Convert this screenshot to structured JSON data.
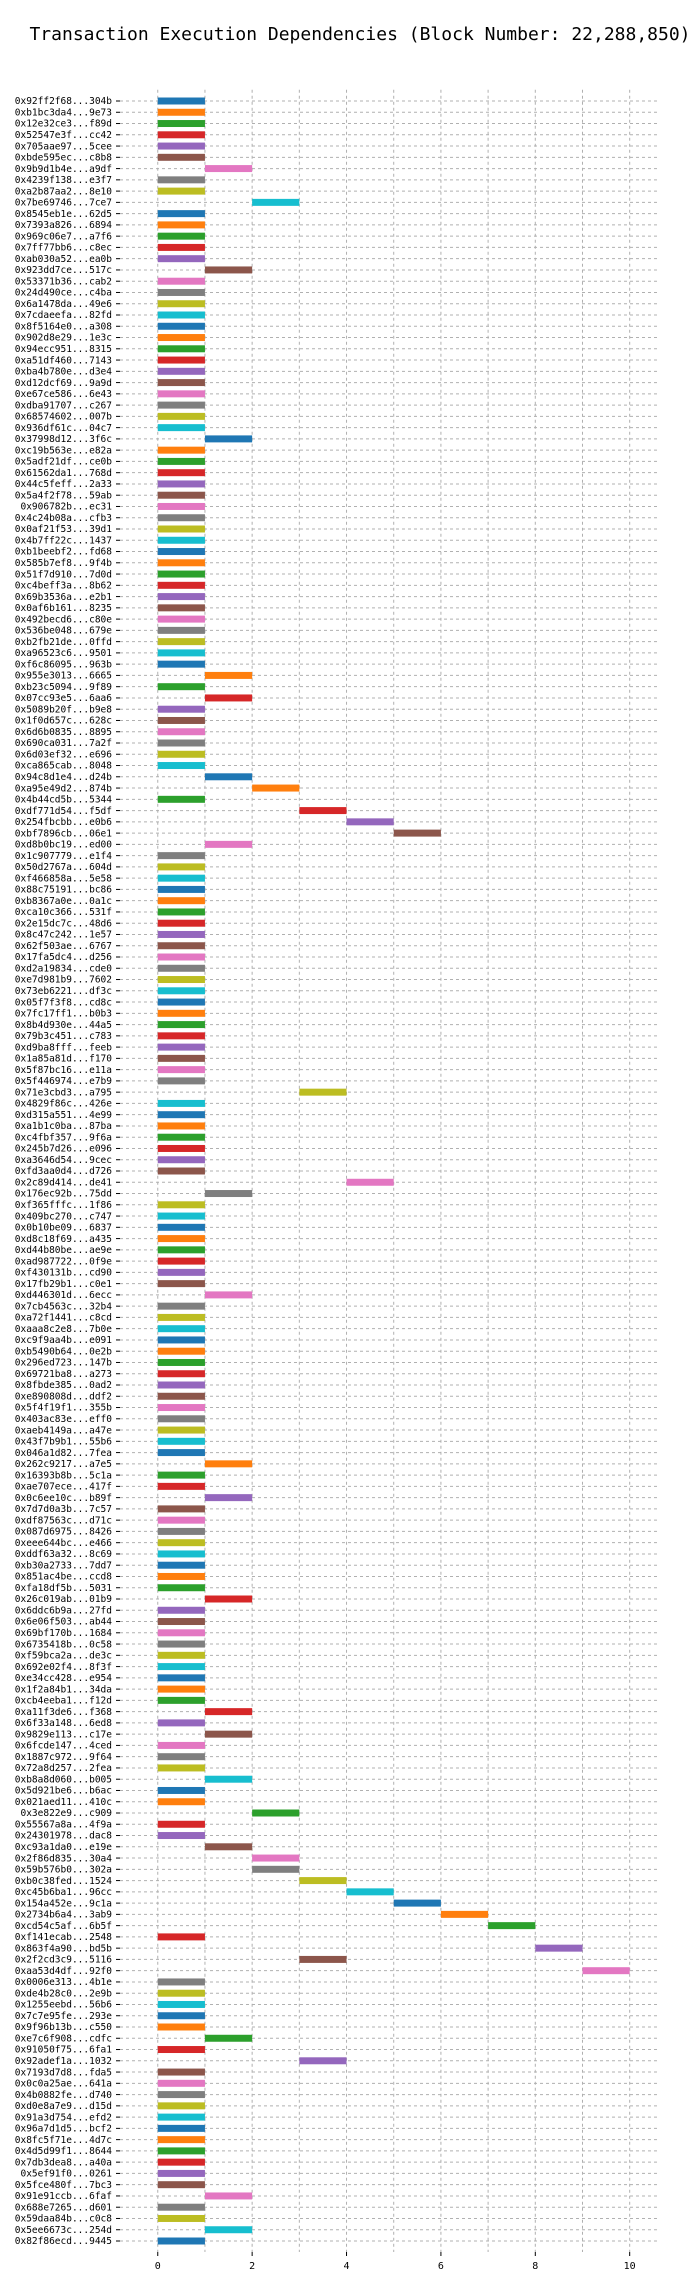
{
  "chart_data": {
    "type": "bar",
    "orientation": "horizontal",
    "title": "Transaction Execution Dependencies (Block Number: 22,288,850)",
    "xlabel": "",
    "ylabel": "",
    "xlim": [
      -0.8,
      10.6
    ],
    "xticks": [
      0,
      2,
      4,
      6,
      8,
      10
    ],
    "grid": true,
    "legend": "none",
    "palette": [
      "#1f77b4",
      "#ff7f0e",
      "#2ca02c",
      "#d62728",
      "#9467bd",
      "#8c564b",
      "#e377c2",
      "#7f7f7f",
      "#bcbd22",
      "#17becf"
    ],
    "transactions": [
      {
        "label": "0x92ff2f68...304b",
        "start": 0,
        "end": 1
      },
      {
        "label": "0xb1bc3da4...9e73",
        "start": 0,
        "end": 1
      },
      {
        "label": "0x12e32ce3...f89d",
        "start": 0,
        "end": 1
      },
      {
        "label": "0x52547e3f...cc42",
        "start": 0,
        "end": 1
      },
      {
        "label": "0x705aae97...5cee",
        "start": 0,
        "end": 1
      },
      {
        "label": "0xbde595ec...c8b8",
        "start": 0,
        "end": 1
      },
      {
        "label": "0x9b9d1b4e...a9df",
        "start": 1,
        "end": 2
      },
      {
        "label": "0x4239f138...e3f7",
        "start": 0,
        "end": 1
      },
      {
        "label": "0xa2b87aa2...8e10",
        "start": 0,
        "end": 1
      },
      {
        "label": "0x7be69746...7ce7",
        "start": 2,
        "end": 3
      },
      {
        "label": "0x8545eb1e...62d5",
        "start": 0,
        "end": 1
      },
      {
        "label": "0x7393a826...6894",
        "start": 0,
        "end": 1
      },
      {
        "label": "0x969c06e7...a7f6",
        "start": 0,
        "end": 1
      },
      {
        "label": "0x7ff77bb6...c8ec",
        "start": 0,
        "end": 1
      },
      {
        "label": "0xab030a52...ea0b",
        "start": 0,
        "end": 1
      },
      {
        "label": "0x923dd7ce...517c",
        "start": 1,
        "end": 2
      },
      {
        "label": "0x53371b36...cab2",
        "start": 0,
        "end": 1
      },
      {
        "label": "0x24d490ce...c4ba",
        "start": 0,
        "end": 1
      },
      {
        "label": "0x6a1478da...49e6",
        "start": 0,
        "end": 1
      },
      {
        "label": "0x7cdaeefa...82fd",
        "start": 0,
        "end": 1
      },
      {
        "label": "0x8f5164e0...a308",
        "start": 0,
        "end": 1
      },
      {
        "label": "0x902d8e29...1e3c",
        "start": 0,
        "end": 1
      },
      {
        "label": "0x94ecc951...8315",
        "start": 0,
        "end": 1
      },
      {
        "label": "0xa51df460...7143",
        "start": 0,
        "end": 1
      },
      {
        "label": "0xba4b780e...d3e4",
        "start": 0,
        "end": 1
      },
      {
        "label": "0xd12dcf69...9a9d",
        "start": 0,
        "end": 1
      },
      {
        "label": "0xe67ce586...6e43",
        "start": 0,
        "end": 1
      },
      {
        "label": "0xdba91707...c267",
        "start": 0,
        "end": 1
      },
      {
        "label": "0x68574602...007b",
        "start": 0,
        "end": 1
      },
      {
        "label": "0x936df61c...04c7",
        "start": 0,
        "end": 1
      },
      {
        "label": "0x37998d12...3f6c",
        "start": 1,
        "end": 2
      },
      {
        "label": "0xc19b563e...e82a",
        "start": 0,
        "end": 1
      },
      {
        "label": "0x5adf21df...ce0b",
        "start": 0,
        "end": 1
      },
      {
        "label": "0x61562da1...768d",
        "start": 0,
        "end": 1
      },
      {
        "label": "0x44c5feff...2a33",
        "start": 0,
        "end": 1
      },
      {
        "label": "0x5a4f2f78...59ab",
        "start": 0,
        "end": 1
      },
      {
        "label": "0x906782b...ec31",
        "start": 0,
        "end": 1
      },
      {
        "label": "0x4c24b08a...cfb3",
        "start": 0,
        "end": 1
      },
      {
        "label": "0x0af21f53...39d1",
        "start": 0,
        "end": 1
      },
      {
        "label": "0x4b7ff22c...1437",
        "start": 0,
        "end": 1
      },
      {
        "label": "0xb1beebf2...fd68",
        "start": 0,
        "end": 1
      },
      {
        "label": "0x585b7ef8...9f4b",
        "start": 0,
        "end": 1
      },
      {
        "label": "0x51f7d910...7d0d",
        "start": 0,
        "end": 1
      },
      {
        "label": "0xc4beff3a...8b62",
        "start": 0,
        "end": 1
      },
      {
        "label": "0x69b3536a...e2b1",
        "start": 0,
        "end": 1
      },
      {
        "label": "0x0af6b161...8235",
        "start": 0,
        "end": 1
      },
      {
        "label": "0x492becd6...c80e",
        "start": 0,
        "end": 1
      },
      {
        "label": "0x536be048...679e",
        "start": 0,
        "end": 1
      },
      {
        "label": "0xb2fb21de...0ffd",
        "start": 0,
        "end": 1
      },
      {
        "label": "0xa96523c6...9501",
        "start": 0,
        "end": 1
      },
      {
        "label": "0xf6c86095...963b",
        "start": 0,
        "end": 1
      },
      {
        "label": "0x955e3013...6665",
        "start": 1,
        "end": 2
      },
      {
        "label": "0xb23c5094...9f89",
        "start": 0,
        "end": 1
      },
      {
        "label": "0x07cc93e5...6aa6",
        "start": 1,
        "end": 2
      },
      {
        "label": "0x5089b20f...b9e8",
        "start": 0,
        "end": 1
      },
      {
        "label": "0x1f0d657c...628c",
        "start": 0,
        "end": 1
      },
      {
        "label": "0x6d6b0835...8895",
        "start": 0,
        "end": 1
      },
      {
        "label": "0x690ca031...7a2f",
        "start": 0,
        "end": 1
      },
      {
        "label": "0x6d03ef32...e696",
        "start": 0,
        "end": 1
      },
      {
        "label": "0xca865cab...8048",
        "start": 0,
        "end": 1
      },
      {
        "label": "0x94c8d1e4...d24b",
        "start": 1,
        "end": 2
      },
      {
        "label": "0xa95e49d2...874b",
        "start": 2,
        "end": 3
      },
      {
        "label": "0x4b44cd5b...5344",
        "start": 0,
        "end": 1
      },
      {
        "label": "0xdf771d54...f5df",
        "start": 3,
        "end": 4
      },
      {
        "label": "0x254fbcbb...e0b6",
        "start": 4,
        "end": 5
      },
      {
        "label": "0xbf7896cb...06e1",
        "start": 5,
        "end": 6
      },
      {
        "label": "0xd8b0bc19...ed00",
        "start": 1,
        "end": 2
      },
      {
        "label": "0x1c907779...e1f4",
        "start": 0,
        "end": 1
      },
      {
        "label": "0x50d2767a...604d",
        "start": 0,
        "end": 1
      },
      {
        "label": "0xf466858a...5e58",
        "start": 0,
        "end": 1
      },
      {
        "label": "0x88c75191...bc86",
        "start": 0,
        "end": 1
      },
      {
        "label": "0xb8367a0e...0a1c",
        "start": 0,
        "end": 1
      },
      {
        "label": "0xca10c366...531f",
        "start": 0,
        "end": 1
      },
      {
        "label": "0x2e15dc7c...48d6",
        "start": 0,
        "end": 1
      },
      {
        "label": "0x8c47c242...1e57",
        "start": 0,
        "end": 1
      },
      {
        "label": "0x62f503ae...6767",
        "start": 0,
        "end": 1
      },
      {
        "label": "0x17fa5dc4...d256",
        "start": 0,
        "end": 1
      },
      {
        "label": "0xd2a19834...cde0",
        "start": 0,
        "end": 1
      },
      {
        "label": "0xe7d981b9...7602",
        "start": 0,
        "end": 1
      },
      {
        "label": "0x73eb6221...df3c",
        "start": 0,
        "end": 1
      },
      {
        "label": "0x05f7f3f8...cd8c",
        "start": 0,
        "end": 1
      },
      {
        "label": "0x7fc17ff1...b0b3",
        "start": 0,
        "end": 1
      },
      {
        "label": "0x8b4d930e...44a5",
        "start": 0,
        "end": 1
      },
      {
        "label": "0x79b3c451...c783",
        "start": 0,
        "end": 1
      },
      {
        "label": "0xd9ba8fff...feeb",
        "start": 0,
        "end": 1
      },
      {
        "label": "0x1a85a81d...f170",
        "start": 0,
        "end": 1
      },
      {
        "label": "0x5f87bc16...e11a",
        "start": 0,
        "end": 1
      },
      {
        "label": "0x5f446974...e7b9",
        "start": 0,
        "end": 1
      },
      {
        "label": "0x71e3cbd3...a795",
        "start": 3,
        "end": 4
      },
      {
        "label": "0x4829f86c...426e",
        "start": 0,
        "end": 1
      },
      {
        "label": "0xd315a551...4e99",
        "start": 0,
        "end": 1
      },
      {
        "label": "0xa1b1c0ba...87ba",
        "start": 0,
        "end": 1
      },
      {
        "label": "0xc4fbf357...9f6a",
        "start": 0,
        "end": 1
      },
      {
        "label": "0x245b7d26...e096",
        "start": 0,
        "end": 1
      },
      {
        "label": "0xa3646d54...9cec",
        "start": 0,
        "end": 1
      },
      {
        "label": "0xfd3aa0d4...d726",
        "start": 0,
        "end": 1
      },
      {
        "label": "0x2c89d414...de41",
        "start": 4,
        "end": 5
      },
      {
        "label": "0x176ec92b...75dd",
        "start": 1,
        "end": 2
      },
      {
        "label": "0xf365fffc...1f86",
        "start": 0,
        "end": 1
      },
      {
        "label": "0x409bc270...c747",
        "start": 0,
        "end": 1
      },
      {
        "label": "0x0b10be09...6837",
        "start": 0,
        "end": 1
      },
      {
        "label": "0xd8c18f69...a435",
        "start": 0,
        "end": 1
      },
      {
        "label": "0xd44b80be...ae9e",
        "start": 0,
        "end": 1
      },
      {
        "label": "0xad987722...0f9e",
        "start": 0,
        "end": 1
      },
      {
        "label": "0xf430131b...cd90",
        "start": 0,
        "end": 1
      },
      {
        "label": "0x17fb29b1...c0e1",
        "start": 0,
        "end": 1
      },
      {
        "label": "0xd446301d...6ecc",
        "start": 1,
        "end": 2
      },
      {
        "label": "0x7cb4563c...32b4",
        "start": 0,
        "end": 1
      },
      {
        "label": "0xa72f1441...c8cd",
        "start": 0,
        "end": 1
      },
      {
        "label": "0xaaa8c2e8...7b0e",
        "start": 0,
        "end": 1
      },
      {
        "label": "0xc9f9aa4b...e091",
        "start": 0,
        "end": 1
      },
      {
        "label": "0xb5490b64...0e2b",
        "start": 0,
        "end": 1
      },
      {
        "label": "0x296ed723...147b",
        "start": 0,
        "end": 1
      },
      {
        "label": "0x69721ba8...a273",
        "start": 0,
        "end": 1
      },
      {
        "label": "0x8fbde385...0ad2",
        "start": 0,
        "end": 1
      },
      {
        "label": "0xe890808d...ddf2",
        "start": 0,
        "end": 1
      },
      {
        "label": "0x5f4f19f1...355b",
        "start": 0,
        "end": 1
      },
      {
        "label": "0x403ac83e...eff0",
        "start": 0,
        "end": 1
      },
      {
        "label": "0xaeb4149a...a47e",
        "start": 0,
        "end": 1
      },
      {
        "label": "0x43f7b9b1...55b6",
        "start": 0,
        "end": 1
      },
      {
        "label": "0x046a1d82...7fea",
        "start": 0,
        "end": 1
      },
      {
        "label": "0x262c9217...a7e5",
        "start": 1,
        "end": 2
      },
      {
        "label": "0x16393b8b...5c1a",
        "start": 0,
        "end": 1
      },
      {
        "label": "0xae707ece...417f",
        "start": 0,
        "end": 1
      },
      {
        "label": "0x0c6ee10c...b89f",
        "start": 1,
        "end": 2
      },
      {
        "label": "0x7d7d0a3b...7c57",
        "start": 0,
        "end": 1
      },
      {
        "label": "0xdf87563c...d71c",
        "start": 0,
        "end": 1
      },
      {
        "label": "0x087d6975...8426",
        "start": 0,
        "end": 1
      },
      {
        "label": "0xeee644bc...e466",
        "start": 0,
        "end": 1
      },
      {
        "label": "0xddf63a32...8c69",
        "start": 0,
        "end": 1
      },
      {
        "label": "0xb30a2733...7dd7",
        "start": 0,
        "end": 1
      },
      {
        "label": "0x851ac4be...ccd8",
        "start": 0,
        "end": 1
      },
      {
        "label": "0xfa18df5b...5031",
        "start": 0,
        "end": 1
      },
      {
        "label": "0x26c019ab...01b9",
        "start": 1,
        "end": 2
      },
      {
        "label": "0x6ddc6b9a...27fd",
        "start": 0,
        "end": 1
      },
      {
        "label": "0x6e06f503...ab44",
        "start": 0,
        "end": 1
      },
      {
        "label": "0x69bf170b...1684",
        "start": 0,
        "end": 1
      },
      {
        "label": "0x6735418b...0c58",
        "start": 0,
        "end": 1
      },
      {
        "label": "0xf59bca2a...de3c",
        "start": 0,
        "end": 1
      },
      {
        "label": "0x692e02f4...8f3f",
        "start": 0,
        "end": 1
      },
      {
        "label": "0xe34cc428...e954",
        "start": 0,
        "end": 1
      },
      {
        "label": "0x1f2a84b1...34da",
        "start": 0,
        "end": 1
      },
      {
        "label": "0xcb4eeba1...f12d",
        "start": 0,
        "end": 1
      },
      {
        "label": "0xa11f3de6...f368",
        "start": 1,
        "end": 2
      },
      {
        "label": "0x6f33a148...6ed8",
        "start": 0,
        "end": 1
      },
      {
        "label": "0x9829e113...c17e",
        "start": 1,
        "end": 2
      },
      {
        "label": "0x6fcde147...4ced",
        "start": 0,
        "end": 1
      },
      {
        "label": "0x1887c972...9f64",
        "start": 0,
        "end": 1
      },
      {
        "label": "0x72a8d257...2fea",
        "start": 0,
        "end": 1
      },
      {
        "label": "0xb8a8d060...b005",
        "start": 1,
        "end": 2
      },
      {
        "label": "0x5d921be6...b6ac",
        "start": 0,
        "end": 1
      },
      {
        "label": "0x021aed11...410c",
        "start": 0,
        "end": 1
      },
      {
        "label": "0x3e822e9...c909",
        "start": 2,
        "end": 3
      },
      {
        "label": "0x55567a8a...4f9a",
        "start": 0,
        "end": 1
      },
      {
        "label": "0x24301978...dac8",
        "start": 0,
        "end": 1
      },
      {
        "label": "0xc93a1da0...e19e",
        "start": 1,
        "end": 2
      },
      {
        "label": "0x2f86d835...30a4",
        "start": 2,
        "end": 3
      },
      {
        "label": "0x59b576b0...302a",
        "start": 2,
        "end": 3
      },
      {
        "label": "0xb0c38fed...1524",
        "start": 3,
        "end": 4
      },
      {
        "label": "0xc45b6ba1...96cc",
        "start": 4,
        "end": 5
      },
      {
        "label": "0x154a452e...9c1a",
        "start": 5,
        "end": 6
      },
      {
        "label": "0x2734b6a4...3ab9",
        "start": 6,
        "end": 7
      },
      {
        "label": "0xcd54c5af...6b5f",
        "start": 7,
        "end": 8
      },
      {
        "label": "0xf141ecab...2548",
        "start": 0,
        "end": 1
      },
      {
        "label": "0x863f4a90...bd5b",
        "start": 8,
        "end": 9
      },
      {
        "label": "0x2f2cd3c9...5116",
        "start": 3,
        "end": 4
      },
      {
        "label": "0xaa53d4df...92f0",
        "start": 9,
        "end": 10
      },
      {
        "label": "0x0006e313...4b1e",
        "start": 0,
        "end": 1
      },
      {
        "label": "0xde4b28c0...2e9b",
        "start": 0,
        "end": 1
      },
      {
        "label": "0x1255eebd...56b6",
        "start": 0,
        "end": 1
      },
      {
        "label": "0x7c7e95fe...293e",
        "start": 0,
        "end": 1
      },
      {
        "label": "0x9f96b13b...c550",
        "start": 0,
        "end": 1
      },
      {
        "label": "0xe7c6f908...cdfc",
        "start": 1,
        "end": 2
      },
      {
        "label": "0x91050f75...6fa1",
        "start": 0,
        "end": 1
      },
      {
        "label": "0x92adef1a...1032",
        "start": 3,
        "end": 4
      },
      {
        "label": "0x7193d7d8...fda5",
        "start": 0,
        "end": 1
      },
      {
        "label": "0x0c0a25ae...641a",
        "start": 0,
        "end": 1
      },
      {
        "label": "0x4b0882fe...d740",
        "start": 0,
        "end": 1
      },
      {
        "label": "0xd0e8a7e9...d15d",
        "start": 0,
        "end": 1
      },
      {
        "label": "0x91a3d754...efd2",
        "start": 0,
        "end": 1
      },
      {
        "label": "0x96a7d1d5...bcf2",
        "start": 0,
        "end": 1
      },
      {
        "label": "0x8fc5f71e...4d7c",
        "start": 0,
        "end": 1
      },
      {
        "label": "0x4d5d99f1...8644",
        "start": 0,
        "end": 1
      },
      {
        "label": "0x7db3dea8...a40a",
        "start": 0,
        "end": 1
      },
      {
        "label": "0x5ef91f0...0261",
        "start": 0,
        "end": 1
      },
      {
        "label": "0x5fce480f...7bc3",
        "start": 0,
        "end": 1
      },
      {
        "label": "0x91e91ccb...6faf",
        "start": 1,
        "end": 2
      },
      {
        "label": "0x688e7265...d601",
        "start": 0,
        "end": 1
      },
      {
        "label": "0x59daa84b...c0c8",
        "start": 0,
        "end": 1
      },
      {
        "label": "0x5ee6673c...254d",
        "start": 1,
        "end": 2
      },
      {
        "label": "0x82f86ecd...9445",
        "start": 0,
        "end": 1
      }
    ]
  }
}
